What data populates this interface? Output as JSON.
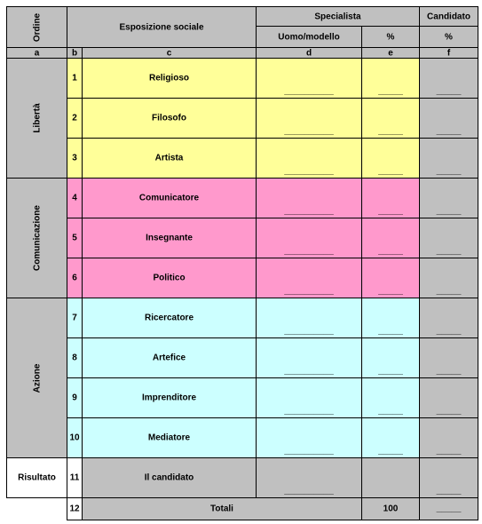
{
  "header": {
    "ordine": "Ordine",
    "esposizione": "Esposizione sociale",
    "specialista": "Specialista",
    "candidato": "Candidato",
    "uomo_modello": "Uomo/modello",
    "pct_specialista": "%",
    "pct_candidato": "%"
  },
  "column_letters": [
    "a",
    "b",
    "c",
    "d",
    "e",
    "f"
  ],
  "groups": [
    {
      "label": "Libertà",
      "color": "#ffff99",
      "rows": [
        {
          "n": 1,
          "label": "Religioso",
          "d": "__________",
          "e": "_____",
          "f": "_____"
        },
        {
          "n": 2,
          "label": "Filosofo",
          "d": "__________",
          "e": "_____",
          "f": "_____"
        },
        {
          "n": 3,
          "label": "Artista",
          "d": "__________",
          "e": "_____",
          "f": "_____"
        }
      ]
    },
    {
      "label": "Comunicazione",
      "color": "#ff99cc",
      "rows": [
        {
          "n": 4,
          "label": "Comunicatore",
          "d": "__________",
          "e": "_____",
          "f": "_____"
        },
        {
          "n": 5,
          "label": "Insegnante",
          "d": "__________",
          "e": "_____",
          "f": "_____"
        },
        {
          "n": 6,
          "label": "Politico",
          "d": "__________",
          "e": "_____",
          "f": "_____"
        }
      ]
    },
    {
      "label": "Azione",
      "color": "#ccffff",
      "rows": [
        {
          "n": 7,
          "label": "Ricercatore",
          "d": "__________",
          "e": "_____",
          "f": "_____"
        },
        {
          "n": 8,
          "label": "Artefice",
          "d": "__________",
          "e": "_____",
          "f": "_____"
        },
        {
          "n": 9,
          "label": "Imprenditore",
          "d": "__________",
          "e": "_____",
          "f": "_____"
        },
        {
          "n": 10,
          "label": "Mediatore",
          "d": "__________",
          "e": "_____",
          "f": "_____"
        }
      ]
    }
  ],
  "result": {
    "label": "Risultato",
    "n": 11,
    "name": "Il candidato",
    "d": "__________",
    "f": "_____"
  },
  "total": {
    "n": 12,
    "label": "Totali",
    "e": 100,
    "f": "_____"
  }
}
